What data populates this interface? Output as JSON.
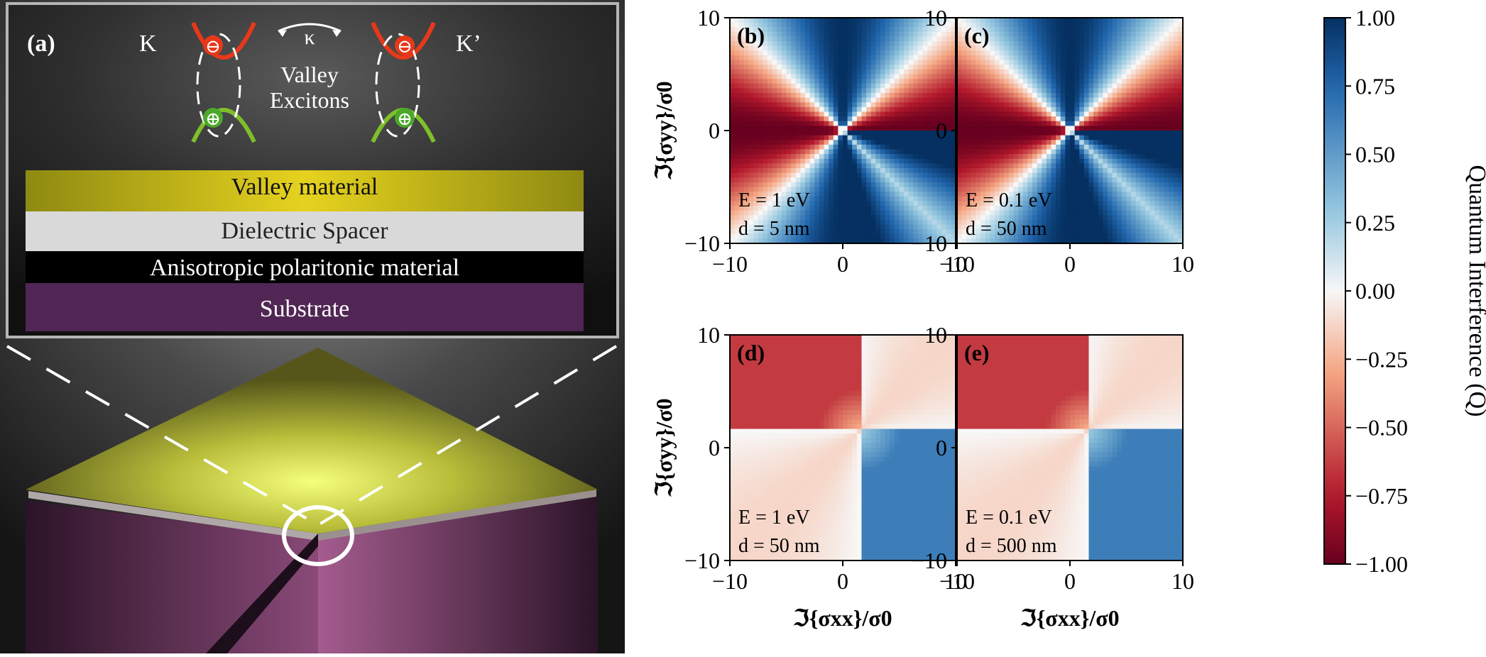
{
  "panel_a": {
    "label": "(a)",
    "valley_left": "K",
    "valley_right": "K’",
    "coupling": "κ",
    "excitons_line1": "Valley",
    "excitons_line2": "Excitons",
    "electron_symbol": "⊖",
    "hole_symbol": "⊕",
    "layers": [
      {
        "label": "Valley material",
        "color": "#c8c21a"
      },
      {
        "label": "Dielectric Spacer",
        "color": "#d9d9d9"
      },
      {
        "label": "Anisotropic polaritonic material",
        "color": "#000000"
      },
      {
        "label": "Substrate",
        "color": "#512654"
      }
    ]
  },
  "chart_data": [
    {
      "type": "heatmap",
      "panel": "(b)",
      "annotation": [
        "E = 1 eV",
        "d = 5 nm"
      ],
      "xlim": [
        -10,
        10
      ],
      "ylim": [
        -10,
        10
      ],
      "xticks": [
        -10,
        0,
        10
      ],
      "yticks": [
        -10,
        0,
        10
      ],
      "pattern": "split",
      "x0": 0,
      "y0": 0,
      "scale": 1.0
    },
    {
      "type": "heatmap",
      "panel": "(c)",
      "annotation": [
        "E = 0.1 eV",
        "d = 50 nm"
      ],
      "xlim": [
        -10,
        10
      ],
      "ylim": [
        -10,
        10
      ],
      "xticks": [
        -10,
        0,
        10
      ],
      "yticks": [
        -10,
        0,
        10
      ],
      "pattern": "split",
      "x0": 0,
      "y0": 0,
      "scale": 1.0
    },
    {
      "type": "heatmap",
      "panel": "(d)",
      "annotation": [
        "E = 1 eV",
        "d = 50 nm"
      ],
      "xlim": [
        -10,
        10
      ],
      "ylim": [
        -10,
        10
      ],
      "xticks": [
        -10,
        0,
        10
      ],
      "yticks": [
        -10,
        0,
        10
      ],
      "pattern": "offset",
      "x0": 1.5,
      "y0": 1.5,
      "scale": 0.85
    },
    {
      "type": "heatmap",
      "panel": "(e)",
      "annotation": [
        "E = 0.1 eV",
        "d = 500 nm"
      ],
      "xlim": [
        -10,
        10
      ],
      "ylim": [
        -10,
        10
      ],
      "xticks": [
        -10,
        0,
        10
      ],
      "yticks": [
        -10,
        0,
        10
      ],
      "pattern": "offset",
      "x0": 1.5,
      "y0": 1.5,
      "scale": 0.85
    }
  ],
  "axes": {
    "x_label": "ℑ{σxx}/σ0",
    "y_label": "ℑ{σyy}/σ0"
  },
  "colorbar": {
    "label": "Quantum Interference (Q)",
    "ticks": [
      "1.00",
      "0.75",
      "0.50",
      "0.25",
      "0.00",
      "−0.25",
      "−0.50",
      "−0.75",
      "−1.00"
    ],
    "colors": {
      "max": "#053061",
      "high": "#2166ac",
      "midhigh": "#92c5de",
      "mid": "#f7f7f7",
      "midlow": "#f4a582",
      "low": "#b2182b",
      "min": "#67001f"
    }
  }
}
